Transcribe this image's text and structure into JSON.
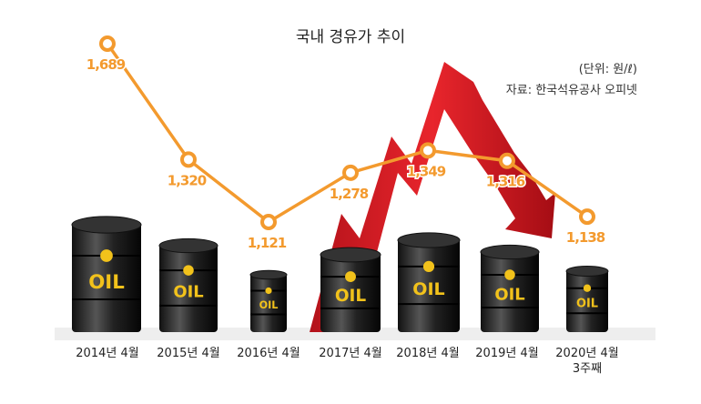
{
  "chart_data": {
    "type": "line",
    "title": "국내 경유가 추이",
    "annotations": [
      "(단위: 원/ℓ)",
      "자료: 한국석유공사 오피넷"
    ],
    "categories": [
      "2014년 4월",
      "2015년 4월",
      "2016년 4월",
      "2017년 4월",
      "2018년 4월",
      "2019년 4월",
      "2020년 4월\n3주째"
    ],
    "values": [
      1689,
      1320,
      1121,
      1278,
      1349,
      1316,
      1138
    ],
    "value_labels": [
      "1,689",
      "1,320",
      "1,121",
      "1,278",
      "1,349",
      "1,316",
      "1,138"
    ],
    "color": "#f39a2e"
  },
  "barrel_label": "OIL"
}
